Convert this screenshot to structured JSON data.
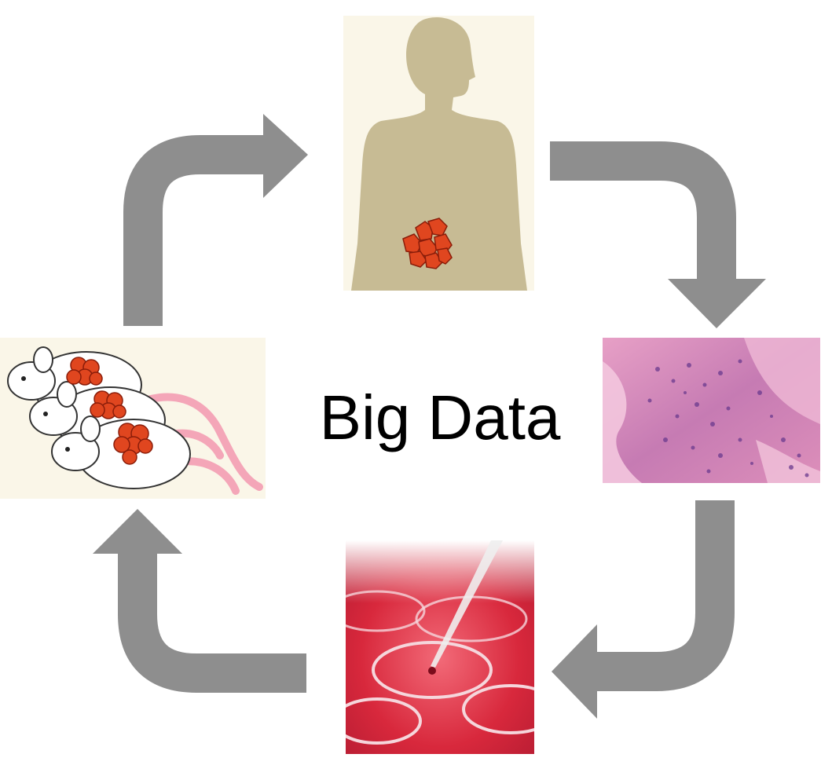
{
  "diagram": {
    "center_label": "Big Data",
    "arrow_color": "#8e8e8e",
    "nodes": [
      {
        "name": "human-with-tumor",
        "icon": "human-silhouette-icon"
      },
      {
        "name": "tumor-histology",
        "icon": "tissue-section-icon"
      },
      {
        "name": "cell-culture",
        "icon": "petri-dish-pipette-icon"
      },
      {
        "name": "mouse-models",
        "icon": "mice-with-tumors-icon"
      }
    ],
    "colors": {
      "silhouette": "#c7bb94",
      "panel_bg": "#faf6e8",
      "tumor": "#e0461f",
      "tissue_pink": "#d88ab8",
      "culture_red": "#d8283c"
    }
  }
}
